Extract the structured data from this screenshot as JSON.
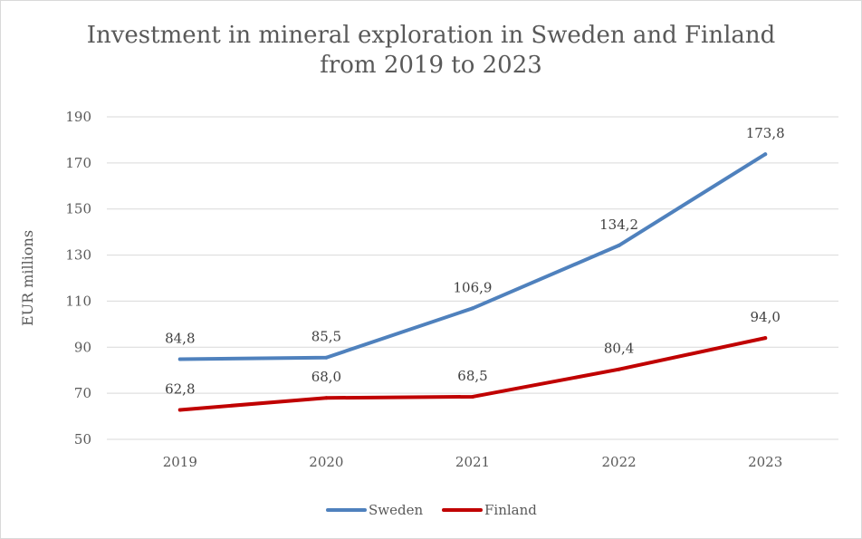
{
  "chart_data": {
    "type": "line",
    "title_lines": [
      "Investment in mineral exploration in Sweden and Finland",
      "from 2019 to 2023"
    ],
    "xlabel": "",
    "ylabel": "EUR millions",
    "categories": [
      "2019",
      "2020",
      "2021",
      "2022",
      "2023"
    ],
    "ylim": [
      50,
      190
    ],
    "yticks": [
      50,
      70,
      90,
      110,
      130,
      150,
      170,
      190
    ],
    "grid": true,
    "legend_position": "bottom",
    "series": [
      {
        "name": "Sweden",
        "color": "#4f81bd",
        "values": [
          84.8,
          85.5,
          106.9,
          134.2,
          173.8
        ],
        "labels": [
          "84,8",
          "85,5",
          "106,9",
          "134,2",
          "173,8"
        ]
      },
      {
        "name": "Finland",
        "color": "#c00000",
        "values": [
          62.8,
          68.0,
          68.5,
          80.4,
          94.0
        ],
        "labels": [
          "62,8",
          "68,0",
          "68,5",
          "80,4",
          "94,0"
        ]
      }
    ]
  }
}
